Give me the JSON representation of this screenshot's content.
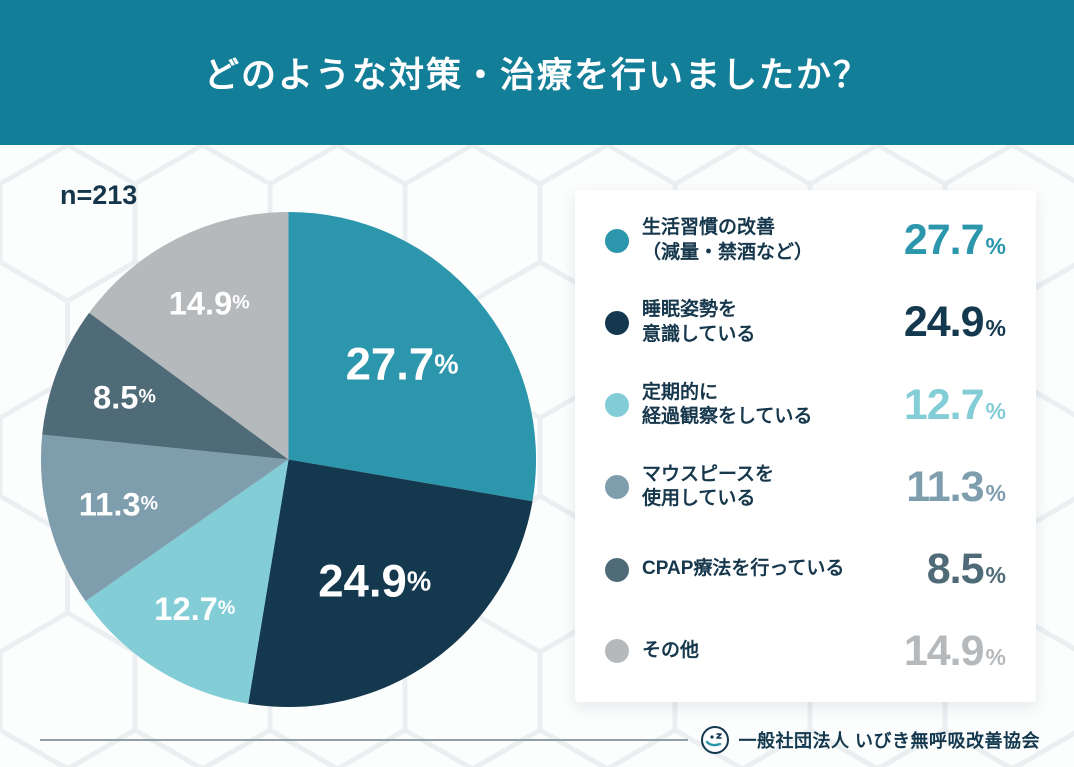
{
  "header": {
    "title": "どのような対策・治療を行いましたか？",
    "bg_color": "#137e98"
  },
  "sample_label": "n=213",
  "chart_data": {
    "type": "pie",
    "title": "どのような対策・治療を行いましたか？",
    "sample_size": 213,
    "start_angle_deg": -90,
    "direction": "clockwise",
    "value_suffix": "%",
    "legend_position": "right",
    "slices": [
      {
        "label": "生活習慣の改善（減量・禁酒など）",
        "label_lines": [
          "生活習慣の改善",
          "（減量・禁酒など）"
        ],
        "value": 27.7,
        "color": "#2b96ac"
      },
      {
        "label": "睡眠姿勢を意識している",
        "label_lines": [
          "睡眠姿勢を",
          "意識している"
        ],
        "value": 24.9,
        "color": "#14384e"
      },
      {
        "label": "定期的に経過観察をしている",
        "label_lines": [
          "定期的に",
          "経過観察をしている"
        ],
        "value": 12.7,
        "color": "#83cdd6"
      },
      {
        "label": "マウスピースを使用している",
        "label_lines": [
          "マウスピースを",
          "使用している"
        ],
        "value": 11.3,
        "color": "#7e9dad"
      },
      {
        "label": "CPAP療法を行っている",
        "label_lines": [
          "CPAP療法を行っている"
        ],
        "value": 8.5,
        "color": "#4e6b77"
      },
      {
        "label": "その他",
        "label_lines": [
          "その他"
        ],
        "value": 14.9,
        "color": "#b6b9bc"
      }
    ]
  },
  "footer": {
    "org": "一般社団法人 いびき無呼吸改善協会"
  }
}
